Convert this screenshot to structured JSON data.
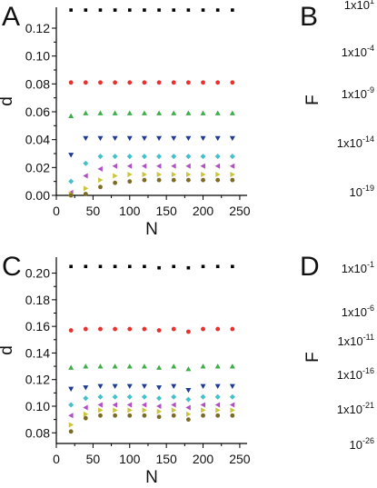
{
  "panels": [
    {
      "id": "A",
      "letter": "A",
      "chart_data": {
        "type": "scatter",
        "title": "",
        "xlabel": "N",
        "ylabel": "d",
        "xlim": [
          0,
          260
        ],
        "ylim": [
          0,
          0.135
        ],
        "xticks": [
          0,
          50,
          100,
          150,
          200,
          250
        ],
        "xtick_labels": [
          "0",
          "50",
          "100",
          "150",
          "200",
          "250"
        ],
        "yticks": [
          0,
          0.02,
          0.04,
          0.06,
          0.08,
          0.1,
          0.12
        ],
        "ytick_labels": [
          "0.00",
          "0.02",
          "0.04",
          "0.06",
          "0.08",
          "0.10",
          "0.12"
        ],
        "grid": false,
        "x": [
          20,
          40,
          60,
          80,
          100,
          120,
          140,
          160,
          180,
          200,
          220,
          240
        ],
        "series": [
          {
            "marker": "square",
            "color": "#000000",
            "values": [
              0.133,
              0.133,
              0.133,
              0.133,
              0.133,
              0.133,
              0.133,
              0.133,
              0.133,
              0.133,
              0.133,
              0.133
            ]
          },
          {
            "marker": "circle",
            "color": "#e8302c",
            "values": [
              0.081,
              0.081,
              0.081,
              0.081,
              0.081,
              0.081,
              0.081,
              0.081,
              0.081,
              0.081,
              0.081,
              0.081
            ]
          },
          {
            "marker": "triangle-up",
            "color": "#3fae49",
            "values": [
              0.057,
              0.059,
              0.059,
              0.059,
              0.059,
              0.059,
              0.059,
              0.059,
              0.059,
              0.059,
              0.059,
              0.059
            ]
          },
          {
            "marker": "triangle-down",
            "color": "#1f3a93",
            "values": [
              0.029,
              0.041,
              0.041,
              0.041,
              0.041,
              0.041,
              0.041,
              0.041,
              0.041,
              0.041,
              0.041,
              0.041
            ]
          },
          {
            "marker": "diamond",
            "color": "#43c0c8",
            "values": [
              0.01,
              0.023,
              0.028,
              0.028,
              0.028,
              0.028,
              0.028,
              0.028,
              0.028,
              0.028,
              0.028,
              0.028
            ]
          },
          {
            "marker": "triangle-left",
            "color": "#b04fc4",
            "values": [
              0.002,
              0.014,
              0.019,
              0.021,
              0.021,
              0.021,
              0.021,
              0.021,
              0.021,
              0.021,
              0.021,
              0.021
            ]
          },
          {
            "marker": "triangle-right",
            "color": "#c9c43a",
            "values": [
              0.001,
              0.005,
              0.011,
              0.014,
              0.015,
              0.015,
              0.015,
              0.015,
              0.015,
              0.015,
              0.015,
              0.015
            ]
          },
          {
            "marker": "circle",
            "color": "#7a6b26",
            "values": [
              0.0,
              0.001,
              0.006,
              0.009,
              0.01,
              0.011,
              0.011,
              0.011,
              0.011,
              0.011,
              0.011,
              0.011
            ]
          }
        ]
      }
    },
    {
      "id": "C",
      "letter": "C",
      "chart_data": {
        "type": "scatter",
        "title": "",
        "xlabel": "N",
        "ylabel": "d",
        "xlim": [
          0,
          260
        ],
        "ylim": [
          0.072,
          0.212
        ],
        "xticks": [
          0,
          50,
          100,
          150,
          200,
          250
        ],
        "xtick_labels": [
          "0",
          "50",
          "100",
          "150",
          "200",
          "250"
        ],
        "yticks": [
          0.08,
          0.1,
          0.12,
          0.14,
          0.16,
          0.18,
          0.2
        ],
        "ytick_labels": [
          "0.08",
          "0.10",
          "0.12",
          "0.14",
          "0.16",
          "0.18",
          "0.20"
        ],
        "grid": false,
        "x": [
          20,
          40,
          60,
          80,
          100,
          120,
          140,
          160,
          180,
          200,
          220,
          240
        ],
        "series": [
          {
            "marker": "square",
            "color": "#000000",
            "values": [
              0.205,
              0.205,
              0.205,
              0.205,
              0.205,
              0.205,
              0.204,
              0.205,
              0.204,
              0.205,
              0.205,
              0.205
            ]
          },
          {
            "marker": "circle",
            "color": "#e8302c",
            "values": [
              0.157,
              0.158,
              0.158,
              0.158,
              0.158,
              0.158,
              0.157,
              0.158,
              0.156,
              0.158,
              0.158,
              0.158
            ]
          },
          {
            "marker": "triangle-up",
            "color": "#3fae49",
            "values": [
              0.129,
              0.13,
              0.13,
              0.13,
              0.13,
              0.13,
              0.129,
              0.13,
              0.128,
              0.13,
              0.13,
              0.13
            ]
          },
          {
            "marker": "triangle-down",
            "color": "#1f3a93",
            "values": [
              0.113,
              0.114,
              0.115,
              0.115,
              0.115,
              0.115,
              0.114,
              0.115,
              0.112,
              0.115,
              0.115,
              0.115
            ]
          },
          {
            "marker": "diamond",
            "color": "#43c0c8",
            "values": [
              0.101,
              0.106,
              0.107,
              0.107,
              0.107,
              0.107,
              0.106,
              0.107,
              0.105,
              0.107,
              0.107,
              0.107
            ]
          },
          {
            "marker": "triangle-left",
            "color": "#b04fc4",
            "values": [
              0.093,
              0.099,
              0.101,
              0.101,
              0.101,
              0.101,
              0.1,
              0.101,
              0.099,
              0.101,
              0.101,
              0.101
            ]
          },
          {
            "marker": "triangle-right",
            "color": "#c9c43a",
            "values": [
              0.086,
              0.094,
              0.097,
              0.097,
              0.097,
              0.097,
              0.096,
              0.097,
              0.094,
              0.097,
              0.097,
              0.097
            ]
          },
          {
            "marker": "circle",
            "color": "#7a6b26",
            "values": [
              0.081,
              0.091,
              0.093,
              0.093,
              0.093,
              0.093,
              0.092,
              0.093,
              0.09,
              0.093,
              0.093,
              0.093
            ]
          }
        ]
      }
    }
  ],
  "partial_panels": [
    {
      "id": "B",
      "letter": "B",
      "ylabel": "F",
      "tick_labels": [
        {
          "base": "1x10",
          "exp": "1"
        },
        {
          "base": "1x10",
          "exp": "-4"
        },
        {
          "base": "1x10",
          "exp": "-9"
        },
        {
          "base": "1x10",
          "exp": "-14"
        },
        {
          "base": "10",
          "exp": "-19"
        }
      ]
    },
    {
      "id": "D",
      "letter": "D",
      "ylabel": "F",
      "tick_labels": [
        {
          "base": "1x10",
          "exp": "-1"
        },
        {
          "base": "1x10",
          "exp": "-6"
        },
        {
          "base": "1x10",
          "exp": "-11"
        },
        {
          "base": "1x10",
          "exp": "-16"
        },
        {
          "base": "1x10",
          "exp": "-21"
        },
        {
          "base": "10",
          "exp": "-26"
        }
      ]
    }
  ]
}
